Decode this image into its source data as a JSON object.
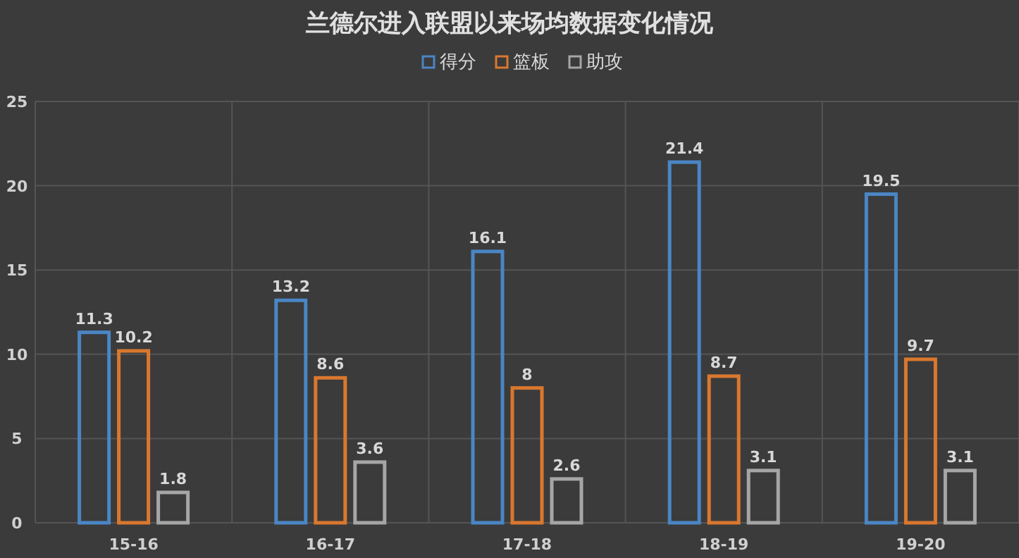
{
  "chart_data": {
    "type": "bar",
    "title": "兰德尔进入联盟以来场均数据变化情况",
    "categories": [
      "15-16",
      "16-17",
      "17-18",
      "18-19",
      "19-20"
    ],
    "series": [
      {
        "name": "得分",
        "color": "#4a86c5",
        "values": [
          11.3,
          13.2,
          16.1,
          21.4,
          19.5
        ]
      },
      {
        "name": "篮板",
        "color": "#d9782e",
        "values": [
          10.2,
          8.6,
          8,
          8.7,
          9.7
        ]
      },
      {
        "name": "助攻",
        "color": "#a6a6a6",
        "values": [
          1.8,
          3.6,
          2.6,
          3.1,
          3.1
        ]
      }
    ],
    "ylim": [
      0,
      25
    ],
    "yticks": [
      0,
      5,
      10,
      15,
      20,
      25
    ],
    "grid": true,
    "legend": "top",
    "data_labels": true
  }
}
